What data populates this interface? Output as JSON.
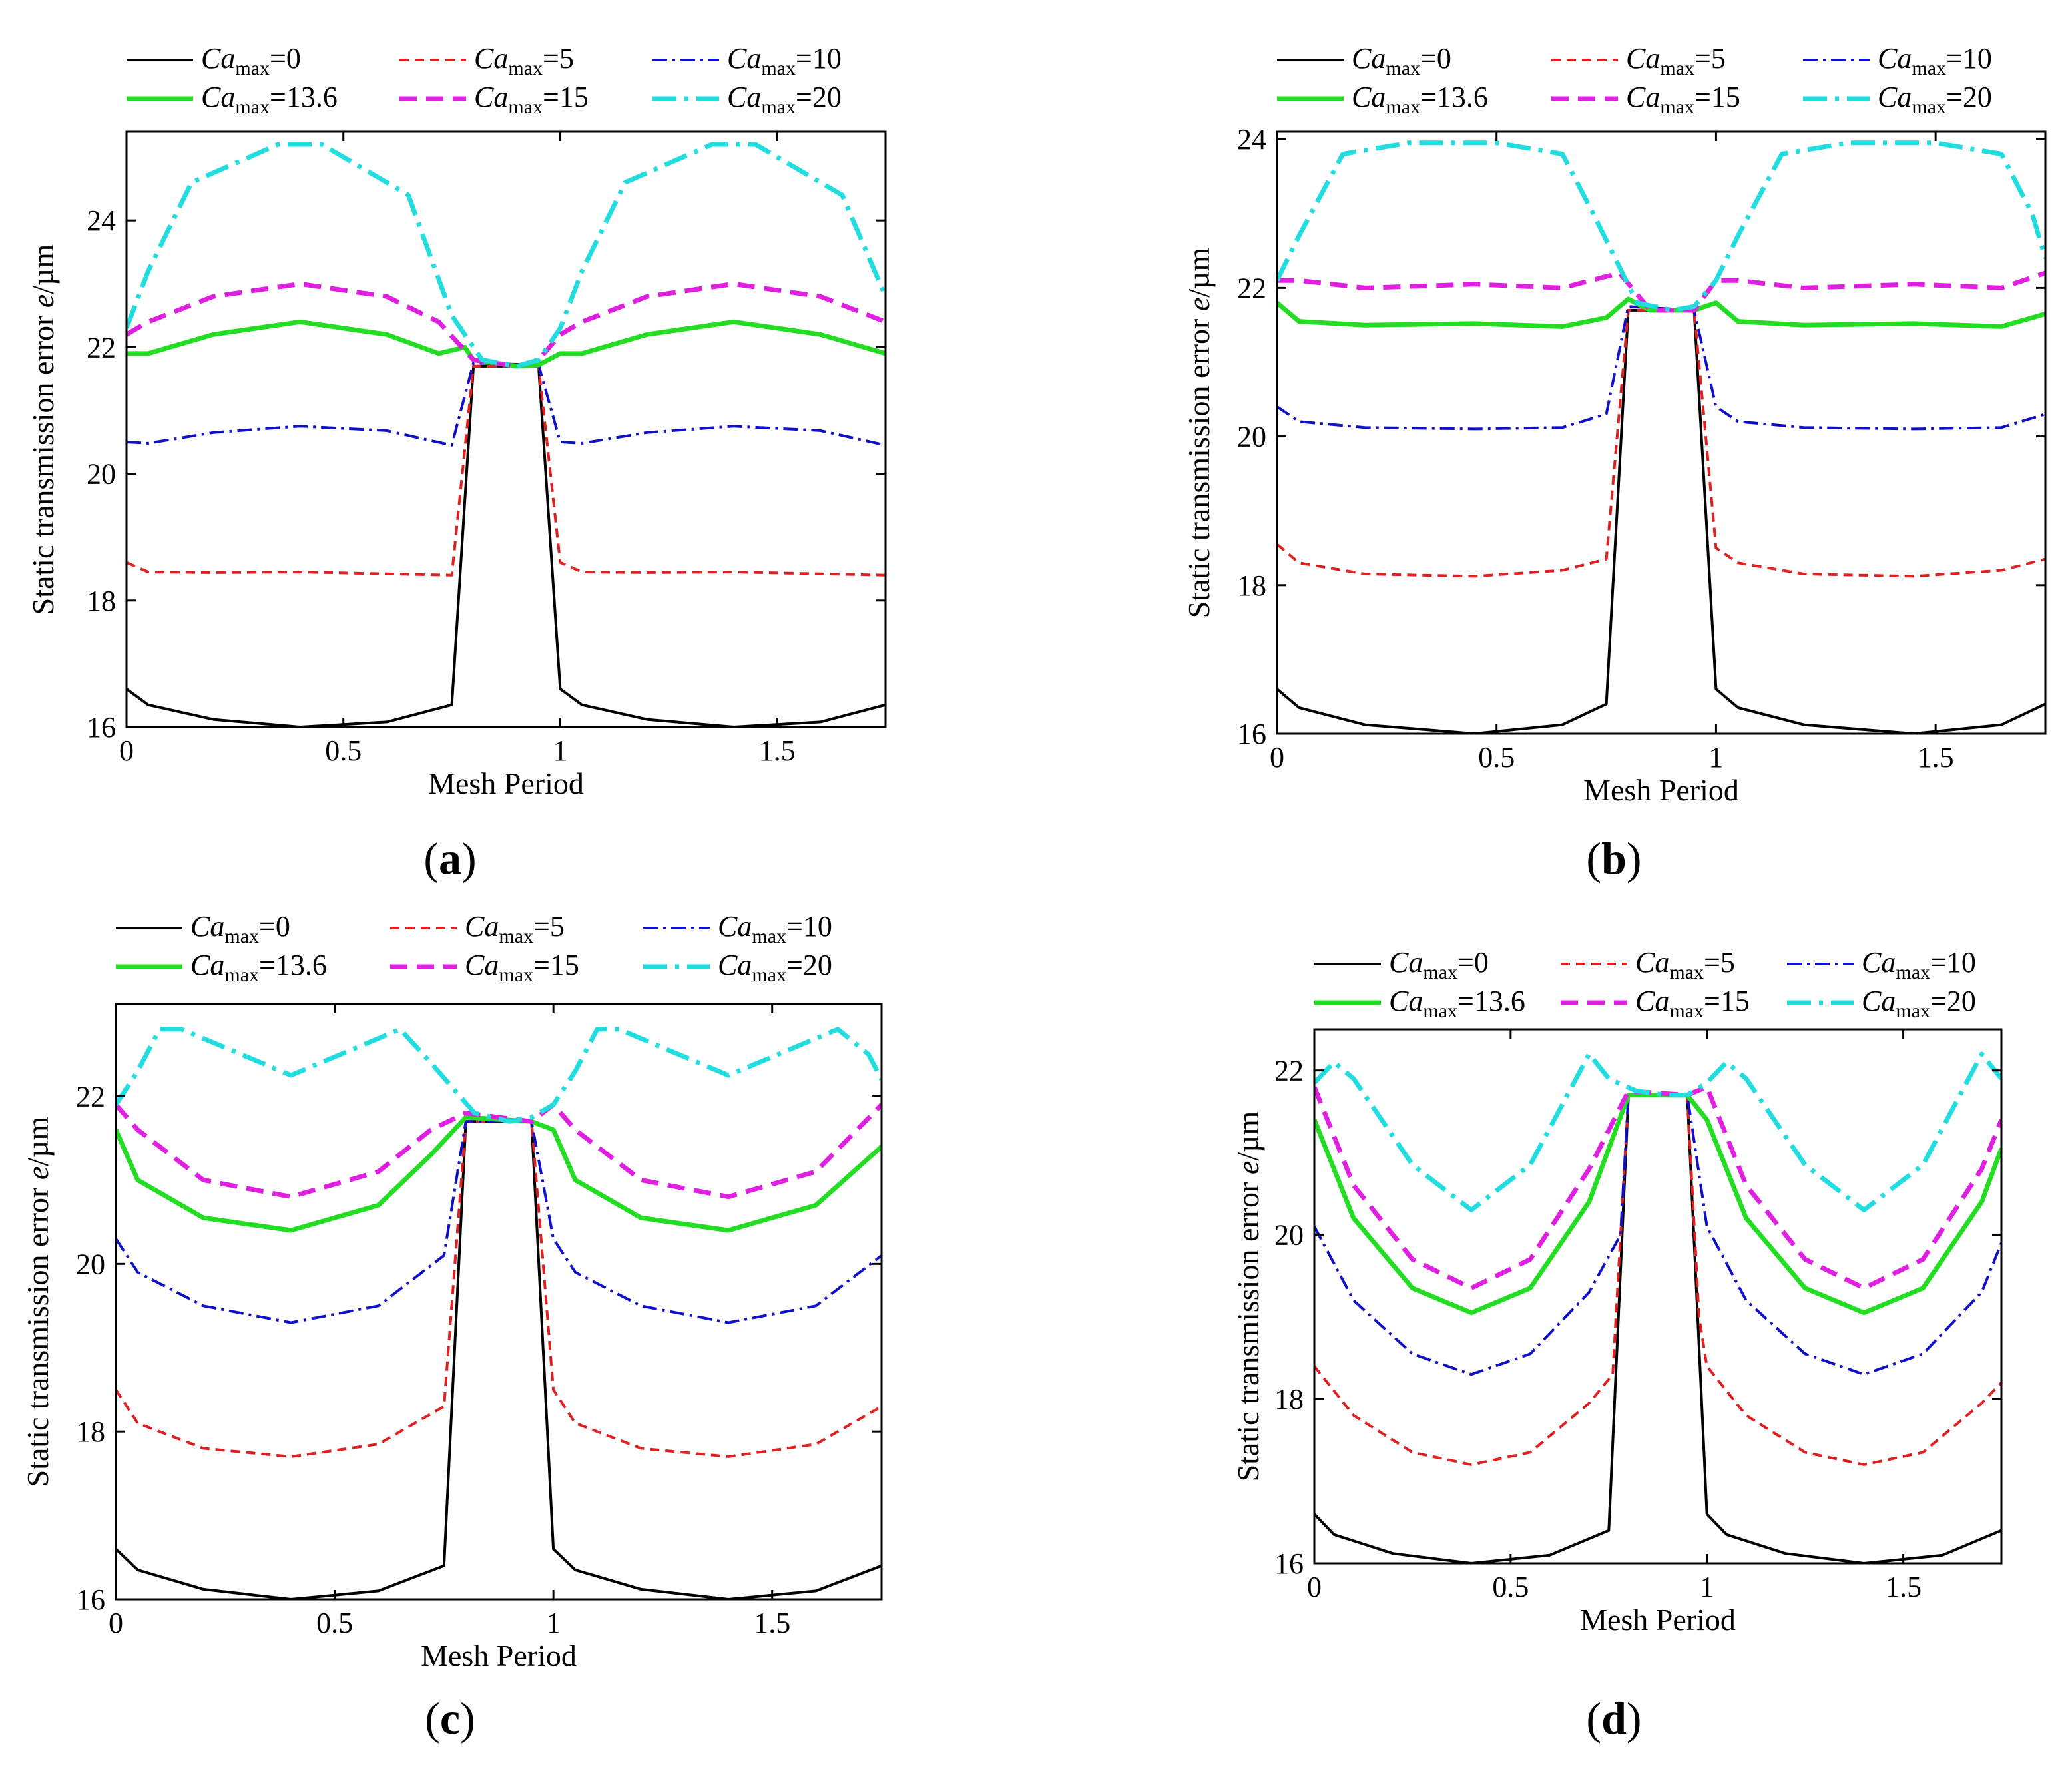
{
  "figure": {
    "panels": [
      "a",
      "b",
      "c",
      "d"
    ]
  },
  "series_styles": [
    {
      "name": "Ca_max=0",
      "prefix": "Ca",
      "sub": "max",
      "suffix": "=0",
      "color": "#000000",
      "dash": "",
      "width": 4
    },
    {
      "name": "Ca_max=5",
      "prefix": "Ca",
      "sub": "max",
      "suffix": "=5",
      "color": "#e02020",
      "dash": "14,9",
      "width": 4
    },
    {
      "name": "Ca_max=10",
      "prefix": "Ca",
      "sub": "max",
      "suffix": "=10",
      "color": "#1010c8",
      "dash": "22,8,4,8",
      "width": 4
    },
    {
      "name": "Ca_max=13.6",
      "prefix": "Ca",
      "sub": "max",
      "suffix": "=13.6",
      "color": "#22dd22",
      "dash": "",
      "width": 7
    },
    {
      "name": "Ca_max=15",
      "prefix": "Ca",
      "sub": "max",
      "suffix": "=15",
      "color": "#e020e0",
      "dash": "26,14",
      "width": 7
    },
    {
      "name": "Ca_max=20",
      "prefix": "Ca",
      "sub": "max",
      "suffix": "=20",
      "color": "#22dde0",
      "dash": "36,12,6,12",
      "width": 7
    }
  ],
  "chart_data": [
    {
      "type": "line",
      "panel_label": "a",
      "title": "",
      "xlabel": "Mesh Period",
      "ylabel_main": "Static transmission error ",
      "ylabel_italic": "e",
      "ylabel_unit": "/µm",
      "xlim": [
        0,
        1.75
      ],
      "ylim": [
        16,
        25.4
      ],
      "xticks": [
        0,
        0.5,
        1,
        1.5
      ],
      "xtick_labels": [
        "0",
        "0.5",
        "1",
        "1.5"
      ],
      "yticks": [
        16,
        18,
        20,
        22,
        24
      ],
      "ytick_labels": [
        "16",
        "18",
        "20",
        "22",
        "24"
      ],
      "legend": "top",
      "grid": false,
      "series": [
        {
          "name": "Ca_max=0",
          "x": [
            0,
            0.05,
            0.2,
            0.4,
            0.6,
            0.75,
            0.8,
            0.95,
            1.0,
            1.05,
            1.2,
            1.4,
            1.6,
            1.75
          ],
          "values": [
            16.6,
            16.35,
            16.12,
            16.0,
            16.08,
            16.35,
            21.7,
            21.7,
            16.6,
            16.35,
            16.12,
            16.0,
            16.08,
            16.35
          ]
        },
        {
          "name": "Ca_max=5",
          "x": [
            0,
            0.05,
            0.2,
            0.4,
            0.6,
            0.75,
            0.8,
            0.95,
            1.0,
            1.05,
            1.2,
            1.4,
            1.6,
            1.75
          ],
          "values": [
            18.6,
            18.45,
            18.44,
            18.45,
            18.42,
            18.4,
            21.7,
            21.7,
            18.6,
            18.45,
            18.44,
            18.45,
            18.42,
            18.4
          ]
        },
        {
          "name": "Ca_max=10",
          "x": [
            0,
            0.05,
            0.2,
            0.4,
            0.6,
            0.75,
            0.8,
            0.95,
            1.0,
            1.05,
            1.2,
            1.4,
            1.6,
            1.75
          ],
          "values": [
            20.5,
            20.48,
            20.65,
            20.75,
            20.68,
            20.45,
            21.75,
            21.72,
            20.5,
            20.48,
            20.65,
            20.75,
            20.68,
            20.45
          ]
        },
        {
          "name": "Ca_max=13.6",
          "x": [
            0,
            0.05,
            0.2,
            0.4,
            0.6,
            0.72,
            0.78,
            0.8,
            0.9,
            0.95,
            1.0,
            1.05,
            1.2,
            1.4,
            1.6,
            1.75
          ],
          "values": [
            21.9,
            21.9,
            22.2,
            22.4,
            22.2,
            21.9,
            22.0,
            21.8,
            21.7,
            21.72,
            21.9,
            21.9,
            22.2,
            22.4,
            22.2,
            21.9
          ]
        },
        {
          "name": "Ca_max=15",
          "x": [
            0,
            0.05,
            0.2,
            0.4,
            0.6,
            0.72,
            0.8,
            0.9,
            0.95,
            1.0,
            1.05,
            1.2,
            1.4,
            1.6,
            1.75
          ],
          "values": [
            22.2,
            22.4,
            22.8,
            23.0,
            22.8,
            22.4,
            21.8,
            21.7,
            21.8,
            22.2,
            22.4,
            22.8,
            23.0,
            22.8,
            22.4
          ]
        },
        {
          "name": "Ca_max=20",
          "x": [
            0,
            0.05,
            0.15,
            0.35,
            0.45,
            0.65,
            0.75,
            0.82,
            0.9,
            0.95,
            1.0,
            1.05,
            1.15,
            1.35,
            1.45,
            1.65,
            1.75
          ],
          "values": [
            22.3,
            23.2,
            24.6,
            25.2,
            25.2,
            24.4,
            22.5,
            21.8,
            21.7,
            21.8,
            22.3,
            23.2,
            24.6,
            25.2,
            25.2,
            24.4,
            22.8
          ]
        }
      ]
    },
    {
      "type": "line",
      "panel_label": "b",
      "title": "",
      "xlabel": "Mesh Period",
      "ylabel_main": "Static transmission error ",
      "ylabel_italic": "e",
      "ylabel_unit": "/µm",
      "xlim": [
        0,
        1.75
      ],
      "ylim": [
        16,
        24.1
      ],
      "xticks": [
        0,
        0.5,
        1,
        1.5
      ],
      "xtick_labels": [
        "0",
        "0.5",
        "1",
        "1.5"
      ],
      "yticks": [
        16,
        18,
        20,
        22,
        24
      ],
      "ytick_labels": [
        "16",
        "18",
        "20",
        "22",
        "24"
      ],
      "legend": "top",
      "grid": false,
      "series": [
        {
          "name": "Ca_max=0",
          "x": [
            0,
            0.05,
            0.2,
            0.45,
            0.65,
            0.75,
            0.8,
            0.95,
            1.0,
            1.05,
            1.2,
            1.45,
            1.65,
            1.75
          ],
          "values": [
            16.6,
            16.35,
            16.12,
            16.0,
            16.12,
            16.4,
            21.7,
            21.7,
            16.6,
            16.35,
            16.12,
            16.0,
            16.12,
            16.4
          ]
        },
        {
          "name": "Ca_max=5",
          "x": [
            0,
            0.05,
            0.2,
            0.45,
            0.65,
            0.75,
            0.8,
            0.95,
            1.0,
            1.05,
            1.2,
            1.45,
            1.65,
            1.75
          ],
          "values": [
            18.55,
            18.3,
            18.15,
            18.12,
            18.2,
            18.35,
            21.7,
            21.7,
            18.5,
            18.3,
            18.15,
            18.12,
            18.2,
            18.35
          ]
        },
        {
          "name": "Ca_max=10",
          "x": [
            0,
            0.05,
            0.2,
            0.45,
            0.65,
            0.75,
            0.8,
            0.95,
            1.0,
            1.05,
            1.2,
            1.45,
            1.65,
            1.75
          ],
          "values": [
            20.4,
            20.2,
            20.12,
            20.1,
            20.12,
            20.3,
            21.75,
            21.7,
            20.4,
            20.2,
            20.12,
            20.1,
            20.12,
            20.3
          ]
        },
        {
          "name": "Ca_max=13.6",
          "x": [
            0,
            0.05,
            0.2,
            0.45,
            0.65,
            0.75,
            0.8,
            0.85,
            0.95,
            1.0,
            1.05,
            1.2,
            1.45,
            1.65,
            1.75
          ],
          "values": [
            21.8,
            21.55,
            21.5,
            21.52,
            21.48,
            21.6,
            21.85,
            21.7,
            21.7,
            21.8,
            21.55,
            21.5,
            21.52,
            21.48,
            21.65
          ]
        },
        {
          "name": "Ca_max=15",
          "x": [
            0,
            0.05,
            0.2,
            0.45,
            0.65,
            0.78,
            0.85,
            0.95,
            1.0,
            1.05,
            1.2,
            1.45,
            1.65,
            1.75
          ],
          "values": [
            22.1,
            22.1,
            22.0,
            22.05,
            22.0,
            22.2,
            21.7,
            21.7,
            22.1,
            22.1,
            22.0,
            22.05,
            22.0,
            22.2
          ]
        },
        {
          "name": "Ca_max=20",
          "x": [
            0,
            0.05,
            0.15,
            0.3,
            0.5,
            0.65,
            0.72,
            0.82,
            0.9,
            0.95,
            1.0,
            1.05,
            1.15,
            1.3,
            1.5,
            1.65,
            1.72,
            1.75
          ],
          "values": [
            22.1,
            22.7,
            23.8,
            23.95,
            23.95,
            23.8,
            23.0,
            21.8,
            21.7,
            21.75,
            22.1,
            22.7,
            23.8,
            23.95,
            23.95,
            23.8,
            23.0,
            22.4
          ]
        }
      ]
    },
    {
      "type": "line",
      "panel_label": "c",
      "title": "",
      "xlabel": "Mesh Period",
      "ylabel_main": "Static transmission error ",
      "ylabel_italic": "e",
      "ylabel_unit": "/µm",
      "xlim": [
        0,
        1.75
      ],
      "ylim": [
        16,
        23.1
      ],
      "xticks": [
        0,
        0.5,
        1,
        1.5
      ],
      "xtick_labels": [
        "0",
        "0.5",
        "1",
        "1.5"
      ],
      "yticks": [
        16,
        18,
        20,
        22
      ],
      "ytick_labels": [
        "16",
        "18",
        "20",
        "22"
      ],
      "legend": "top",
      "grid": false,
      "series": [
        {
          "name": "Ca_max=0",
          "x": [
            0,
            0.05,
            0.2,
            0.4,
            0.6,
            0.75,
            0.8,
            0.95,
            1.0,
            1.05,
            1.2,
            1.4,
            1.6,
            1.75
          ],
          "values": [
            16.6,
            16.35,
            16.12,
            16.0,
            16.1,
            16.4,
            21.7,
            21.7,
            16.6,
            16.35,
            16.12,
            16.0,
            16.1,
            16.4
          ]
        },
        {
          "name": "Ca_max=5",
          "x": [
            0,
            0.05,
            0.2,
            0.4,
            0.6,
            0.75,
            0.8,
            0.95,
            1.0,
            1.05,
            1.2,
            1.4,
            1.6,
            1.75
          ],
          "values": [
            18.5,
            18.1,
            17.8,
            17.7,
            17.85,
            18.3,
            21.7,
            21.7,
            18.5,
            18.1,
            17.8,
            17.7,
            17.85,
            18.3
          ]
        },
        {
          "name": "Ca_max=10",
          "x": [
            0,
            0.05,
            0.2,
            0.4,
            0.6,
            0.75,
            0.8,
            0.95,
            1.0,
            1.05,
            1.2,
            1.4,
            1.6,
            1.75
          ],
          "values": [
            20.3,
            19.9,
            19.5,
            19.3,
            19.5,
            20.1,
            21.7,
            21.7,
            20.3,
            19.9,
            19.5,
            19.3,
            19.5,
            20.1
          ]
        },
        {
          "name": "Ca_max=13.6",
          "x": [
            0,
            0.05,
            0.2,
            0.4,
            0.6,
            0.72,
            0.8,
            0.95,
            1.0,
            1.05,
            1.2,
            1.4,
            1.6,
            1.75
          ],
          "values": [
            21.6,
            21.0,
            20.55,
            20.4,
            20.7,
            21.3,
            21.75,
            21.7,
            21.6,
            21.0,
            20.55,
            20.4,
            20.7,
            21.4
          ]
        },
        {
          "name": "Ca_max=15",
          "x": [
            0,
            0.05,
            0.2,
            0.4,
            0.6,
            0.72,
            0.8,
            0.95,
            1.0,
            1.05,
            1.2,
            1.4,
            1.6,
            1.75
          ],
          "values": [
            21.9,
            21.6,
            21.0,
            20.8,
            21.1,
            21.6,
            21.8,
            21.7,
            21.9,
            21.6,
            21.0,
            20.8,
            21.1,
            21.9
          ]
        },
        {
          "name": "Ca_max=20",
          "x": [
            0,
            0.05,
            0.1,
            0.15,
            0.4,
            0.65,
            0.72,
            0.82,
            0.9,
            0.95,
            1.0,
            1.05,
            1.1,
            1.15,
            1.4,
            1.65,
            1.72,
            1.75
          ],
          "values": [
            21.9,
            22.3,
            22.8,
            22.8,
            22.25,
            22.8,
            22.4,
            21.8,
            21.7,
            21.75,
            21.9,
            22.3,
            22.8,
            22.8,
            22.25,
            22.8,
            22.5,
            22.2
          ]
        }
      ]
    },
    {
      "type": "line",
      "panel_label": "d",
      "title": "",
      "xlabel": "Mesh Period",
      "ylabel_main": "Static transmission error ",
      "ylabel_italic": "e",
      "ylabel_unit": "/µm",
      "xlim": [
        0,
        1.75
      ],
      "ylim": [
        16,
        22.5
      ],
      "xticks": [
        0,
        0.5,
        1,
        1.5
      ],
      "xtick_labels": [
        "0",
        "0.5",
        "1",
        "1.5"
      ],
      "yticks": [
        16,
        18,
        20,
        22
      ],
      "ytick_labels": [
        "16",
        "18",
        "20",
        "22"
      ],
      "legend": "top",
      "grid": false,
      "series": [
        {
          "name": "Ca_max=0",
          "x": [
            0,
            0.05,
            0.2,
            0.4,
            0.6,
            0.75,
            0.8,
            0.95,
            1.0,
            1.05,
            1.2,
            1.4,
            1.6,
            1.75
          ],
          "values": [
            16.6,
            16.35,
            16.12,
            16.0,
            16.1,
            16.4,
            21.7,
            21.7,
            16.6,
            16.35,
            16.12,
            16.0,
            16.1,
            16.4
          ]
        },
        {
          "name": "Ca_max=5",
          "x": [
            0,
            0.1,
            0.25,
            0.4,
            0.55,
            0.7,
            0.76,
            0.8,
            0.95,
            0.98,
            1.0,
            1.1,
            1.25,
            1.4,
            1.55,
            1.7,
            1.75
          ],
          "values": [
            18.4,
            17.8,
            17.35,
            17.2,
            17.35,
            17.95,
            18.3,
            21.7,
            21.7,
            19.0,
            18.4,
            17.8,
            17.35,
            17.2,
            17.35,
            17.95,
            18.2
          ]
        },
        {
          "name": "Ca_max=10",
          "x": [
            0,
            0.1,
            0.25,
            0.4,
            0.55,
            0.7,
            0.78,
            0.8,
            0.95,
            1.0,
            1.1,
            1.25,
            1.4,
            1.55,
            1.7,
            1.75
          ],
          "values": [
            20.1,
            19.2,
            18.55,
            18.3,
            18.55,
            19.3,
            20.0,
            21.7,
            21.7,
            20.1,
            19.2,
            18.55,
            18.3,
            18.55,
            19.3,
            19.9
          ]
        },
        {
          "name": "Ca_max=13.6",
          "x": [
            0,
            0.1,
            0.25,
            0.4,
            0.55,
            0.7,
            0.8,
            0.95,
            1.0,
            1.1,
            1.25,
            1.4,
            1.55,
            1.7,
            1.75
          ],
          "values": [
            21.4,
            20.2,
            19.35,
            19.05,
            19.35,
            20.4,
            21.7,
            21.7,
            21.4,
            20.2,
            19.35,
            19.05,
            19.35,
            20.4,
            21.05
          ]
        },
        {
          "name": "Ca_max=15",
          "x": [
            0,
            0.1,
            0.25,
            0.4,
            0.55,
            0.7,
            0.8,
            0.95,
            1.0,
            1.1,
            1.25,
            1.4,
            1.55,
            1.7,
            1.75
          ],
          "values": [
            21.8,
            20.6,
            19.7,
            19.35,
            19.7,
            20.8,
            21.75,
            21.7,
            21.8,
            20.6,
            19.7,
            19.35,
            19.7,
            20.8,
            21.4
          ]
        },
        {
          "name": "Ca_max=20",
          "x": [
            0,
            0.05,
            0.1,
            0.25,
            0.4,
            0.55,
            0.7,
            0.75,
            0.82,
            0.9,
            0.95,
            1.0,
            1.05,
            1.1,
            1.25,
            1.4,
            1.55,
            1.7,
            1.75
          ],
          "values": [
            21.85,
            22.1,
            21.9,
            20.85,
            20.3,
            20.85,
            22.2,
            21.9,
            21.75,
            21.7,
            21.7,
            21.85,
            22.1,
            21.9,
            20.85,
            20.3,
            20.85,
            22.2,
            21.9
          ]
        }
      ]
    }
  ]
}
